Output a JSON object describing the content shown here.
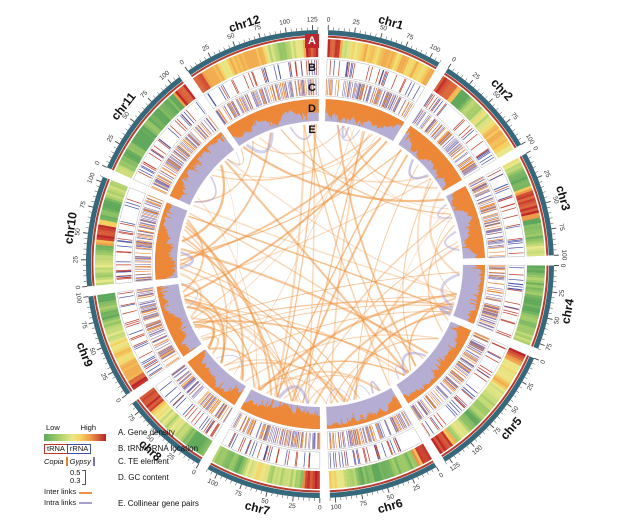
{
  "figure": {
    "track_letters": [
      "A",
      "B",
      "C",
      "D",
      "E"
    ]
  },
  "legend": {
    "gene_density": {
      "low": "Low",
      "high": "High",
      "label": "A. Gene density"
    },
    "trna_rrna": {
      "trna": "tRNA",
      "rrna": "rRNA",
      "label": "B. tRNA/rRNA location"
    },
    "te": {
      "copia": "Copia",
      "gypsy": "Gypsy",
      "label": "C. TE element"
    },
    "gc": {
      "max": "0.5",
      "min": "0.3",
      "label": "D. GC content"
    },
    "links": {
      "inter": "Inter links",
      "intra": "Intra links",
      "label": "E. Collinear gene pairs"
    }
  },
  "chart_data": {
    "type": "circos",
    "seed": 7,
    "start_angle_deg": -88,
    "gap_deg": 2.5,
    "tick_minor": 5,
    "tick_major": 25,
    "chromosomes": [
      {
        "name": "chr1",
        "size": 110
      },
      {
        "name": "chr2",
        "size": 100
      },
      {
        "name": "chr3",
        "size": 100
      },
      {
        "name": "chr4",
        "size": 80
      },
      {
        "name": "chr5",
        "size": 130
      },
      {
        "name": "chr6",
        "size": 105
      },
      {
        "name": "chr7",
        "size": 110
      },
      {
        "name": "chr8",
        "size": 85
      },
      {
        "name": "chr9",
        "size": 100
      },
      {
        "name": "chr10",
        "size": 105
      },
      {
        "name": "chr11",
        "size": 110
      },
      {
        "name": "chr12",
        "size": 130
      }
    ],
    "tracks": [
      {
        "id": "A",
        "name": "Gene density",
        "type": "heatmap",
        "palette": [
          [
            0,
            "#5fa85a"
          ],
          [
            0.25,
            "#a9cf6a"
          ],
          [
            0.45,
            "#e9e88a"
          ],
          [
            0.6,
            "#f6d05e"
          ],
          [
            0.75,
            "#ee9a49"
          ],
          [
            0.88,
            "#d95f39"
          ],
          [
            1,
            "#bb2026"
          ]
        ],
        "high_density_regions": [
          {
            "chr": "chr1",
            "start": 0,
            "end": 12
          },
          {
            "chr": "chr2",
            "start": 0,
            "end": 18
          },
          {
            "chr": "chr3",
            "start": 35,
            "end": 58
          },
          {
            "chr": "chr5",
            "start": 0,
            "end": 8
          },
          {
            "chr": "chr5",
            "start": 115,
            "end": 130
          },
          {
            "chr": "chr6",
            "start": 0,
            "end": 10
          },
          {
            "chr": "chr7",
            "start": 0,
            "end": 14
          },
          {
            "chr": "chr8",
            "start": 68,
            "end": 85
          },
          {
            "chr": "chr9",
            "start": 0,
            "end": 10
          },
          {
            "chr": "chr10",
            "start": 45,
            "end": 60
          },
          {
            "chr": "chr11",
            "start": 98,
            "end": 110
          },
          {
            "chr": "chr12",
            "start": 0,
            "end": 10
          },
          {
            "chr": "chr12",
            "start": 118,
            "end": 130
          }
        ]
      },
      {
        "id": "B",
        "name": "tRNA/rRNA location",
        "type": "tick",
        "colors": {
          "tRNA": "#c13a2b",
          "rRNA": "#4450a5"
        }
      },
      {
        "id": "C",
        "name": "TE element",
        "type": "tick",
        "colors": {
          "Copia": "#e8822a",
          "Gypsy": "#7e6fae"
        }
      },
      {
        "id": "D",
        "name": "GC content",
        "type": "area",
        "range": [
          0.3,
          0.5
        ],
        "colors": {
          "gc": "#ef8632",
          "background": "#b6aed2"
        }
      },
      {
        "id": "E",
        "name": "Collinear gene pairs",
        "type": "link",
        "colors": {
          "inter": "#f0923c",
          "intra": "#a79fd0"
        },
        "inter_count": 90,
        "intra_count": 20
      }
    ],
    "ideogram_colors": {
      "band": "#35687a",
      "accent": "#b63b2f"
    }
  }
}
